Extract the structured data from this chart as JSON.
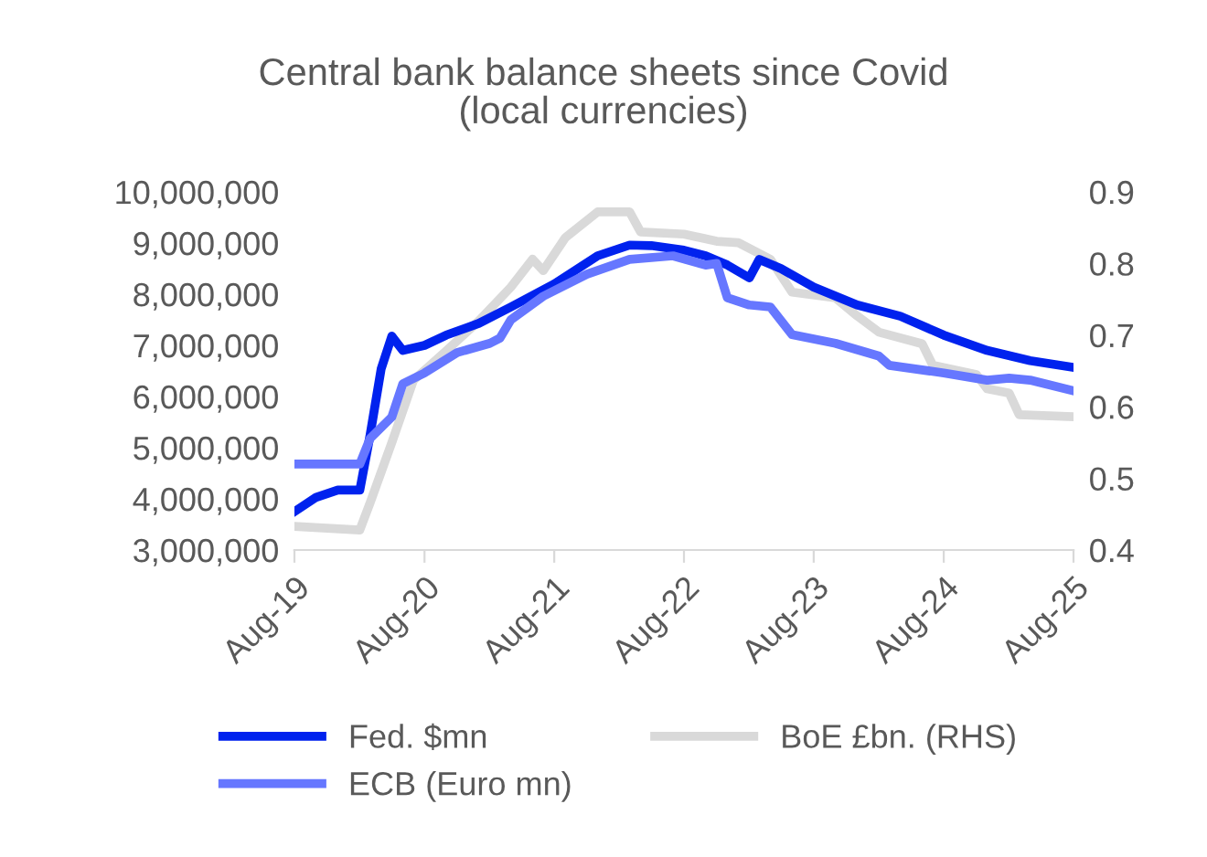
{
  "chart_data": {
    "type": "line",
    "title": "Central bank balance sheets since Covid\n(local currencies)",
    "xlim": [
      "2019-08",
      "2025-08"
    ],
    "xticks": [
      {
        "value": "2019-08",
        "label": "Aug-19"
      },
      {
        "value": "2020-08",
        "label": "Aug-20"
      },
      {
        "value": "2021-08",
        "label": "Aug-21"
      },
      {
        "value": "2022-08",
        "label": "Aug-22"
      },
      {
        "value": "2023-08",
        "label": "Aug-23"
      },
      {
        "value": "2024-08",
        "label": "Aug-24"
      },
      {
        "value": "2025-08",
        "label": "Aug-25"
      }
    ],
    "ylim": [
      3000000,
      10000000
    ],
    "yticks": [
      {
        "value": 3000000,
        "label": "3,000,000"
      },
      {
        "value": 4000000,
        "label": "4,000,000"
      },
      {
        "value": 5000000,
        "label": "5,000,000"
      },
      {
        "value": 6000000,
        "label": "6,000,000"
      },
      {
        "value": 7000000,
        "label": "7,000,000"
      },
      {
        "value": 8000000,
        "label": "8,000,000"
      },
      {
        "value": 9000000,
        "label": "9,000,000"
      },
      {
        "value": 10000000,
        "label": "10,000,000"
      }
    ],
    "y2lim": [
      0.4,
      0.9
    ],
    "y2ticks": [
      0.4,
      0.5,
      0.6,
      0.7,
      0.8,
      0.9
    ],
    "grid": false,
    "legend": "bottom",
    "marker": "none",
    "line_style": "solid",
    "series": [
      {
        "name": "Fed. $mn",
        "color": "#0022ee",
        "x": [
          "2019-08",
          "2019-10",
          "2019-12",
          "2020-02",
          "2020-03",
          "2020-04",
          "2020-05",
          "2020-06",
          "2020-08",
          "2020-10",
          "2021-01",
          "2021-04",
          "2021-08",
          "2021-12",
          "2022-03",
          "2022-05",
          "2022-08",
          "2022-10",
          "2022-12",
          "2023-02",
          "2023-03",
          "2023-05",
          "2023-08",
          "2023-12",
          "2024-04",
          "2024-08",
          "2024-12",
          "2025-04",
          "2025-08"
        ],
        "values": [
          3750000,
          4030000,
          4170000,
          4170000,
          5250000,
          6540000,
          7180000,
          6900000,
          7000000,
          7200000,
          7430000,
          7750000,
          8200000,
          8750000,
          8960000,
          8950000,
          8860000,
          8750000,
          8570000,
          8320000,
          8680000,
          8500000,
          8140000,
          7790000,
          7570000,
          7200000,
          6900000,
          6700000,
          6570000
        ]
      },
      {
        "name": "ECB (Euro mn)",
        "color": "#6677ff",
        "x": [
          "2019-08",
          "2020-02",
          "2020-03",
          "2020-05",
          "2020-06",
          "2020-08",
          "2020-11",
          "2021-02",
          "2021-03",
          "2021-04",
          "2021-07",
          "2021-11",
          "2022-03",
          "2022-07",
          "2022-10",
          "2022-11",
          "2022-12",
          "2023-02",
          "2023-04",
          "2023-06",
          "2023-10",
          "2024-02",
          "2024-03",
          "2024-08",
          "2024-12",
          "2025-02",
          "2025-04",
          "2025-08"
        ],
        "values": [
          4680000,
          4680000,
          5180000,
          5600000,
          6250000,
          6460000,
          6860000,
          7040000,
          7140000,
          7500000,
          7960000,
          8390000,
          8680000,
          8750000,
          8570000,
          8600000,
          7930000,
          7790000,
          7750000,
          7210000,
          7040000,
          6790000,
          6610000,
          6460000,
          6320000,
          6360000,
          6320000,
          6110000
        ]
      },
      {
        "name": "BoE £bn. (RHS)",
        "color": "#d9d9d9",
        "axis": "y2",
        "x": [
          "2019-08",
          "2020-02",
          "2020-03",
          "2020-05",
          "2020-07",
          "2020-10",
          "2021-01",
          "2021-04",
          "2021-06",
          "2021-07",
          "2021-09",
          "2021-12",
          "2022-03",
          "2022-04",
          "2022-08",
          "2022-11",
          "2023-01",
          "2023-04",
          "2023-06",
          "2023-10",
          "2023-12",
          "2024-02",
          "2024-06",
          "2024-07",
          "2024-11",
          "2024-12",
          "2025-02",
          "2025-03",
          "2025-08"
        ],
        "values": [
          0.433,
          0.428,
          0.466,
          0.55,
          0.637,
          0.678,
          0.72,
          0.767,
          0.806,
          0.79,
          0.836,
          0.872,
          0.872,
          0.844,
          0.841,
          0.831,
          0.829,
          0.806,
          0.76,
          0.752,
          0.727,
          0.704,
          0.688,
          0.658,
          0.645,
          0.625,
          0.619,
          0.589,
          0.586
        ]
      }
    ]
  }
}
